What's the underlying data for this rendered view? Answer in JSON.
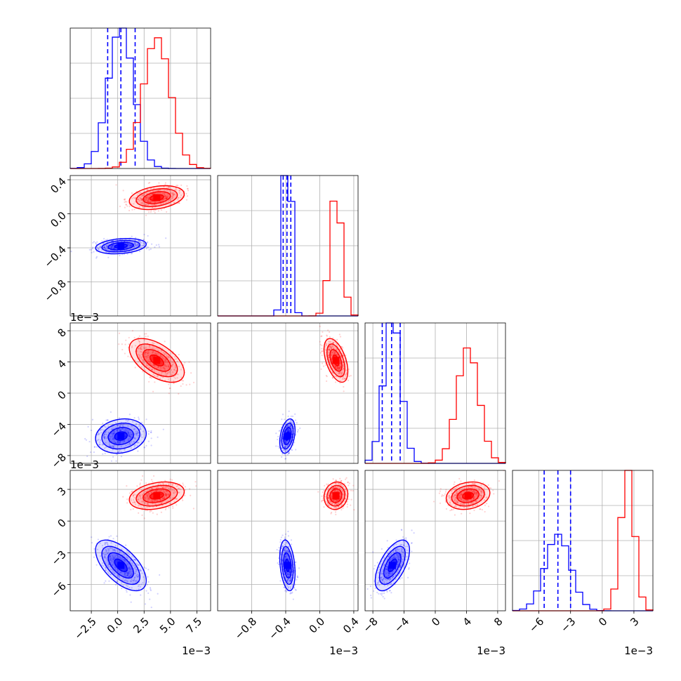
{
  "chart_data": {
    "type": "corner",
    "parameters": [
      {
        "range": [
          -4.5,
          8.8
        ],
        "ticks": [
          -2.5,
          0.0,
          2.5,
          5.0,
          7.5
        ],
        "tick_labels": [
          "−2.5",
          "0.0",
          "2.5",
          "5.0",
          "7.5"
        ],
        "exponent": "1e−3"
      },
      {
        "range": [
          -1.2,
          0.45
        ],
        "ticks": [
          -0.8,
          -0.4,
          0.0,
          0.4
        ],
        "tick_labels": [
          "−0.8",
          "−0.4",
          "0.0",
          "0.4"
        ],
        "exponent": "1e−3"
      },
      {
        "range": [
          -9.0,
          9.0
        ],
        "ticks": [
          -8,
          -4,
          0,
          4,
          8
        ],
        "tick_labels": [
          "−8",
          "−4",
          "0",
          "4",
          "8"
        ],
        "exponent": "1e−3"
      },
      {
        "range": [
          -8.5,
          4.8
        ],
        "ticks": [
          -6,
          -3,
          0,
          3
        ],
        "tick_labels": [
          "−6",
          "−3",
          "0",
          "3"
        ],
        "exponent": "1e−3"
      }
    ],
    "series": [
      {
        "color": "#0000ff",
        "mean": [
          0.3,
          -0.38,
          -5.5,
          -4.2
        ],
        "sd": [
          1.2,
          0.045,
          1.1,
          1.2
        ],
        "quantiles_16_50_84": [
          [
            -0.95,
            0.3,
            1.65
          ],
          [
            -0.43,
            -0.385,
            -0.34
          ],
          [
            -6.8,
            -5.6,
            -4.5
          ],
          [
            -5.5,
            -4.2,
            -3.0
          ]
        ]
      },
      {
        "color": "#ff0000",
        "mean": [
          3.7,
          0.19,
          4.2,
          2.4
        ],
        "sd": [
          1.3,
          0.07,
          1.4,
          0.65
        ]
      }
    ],
    "grid": true
  }
}
